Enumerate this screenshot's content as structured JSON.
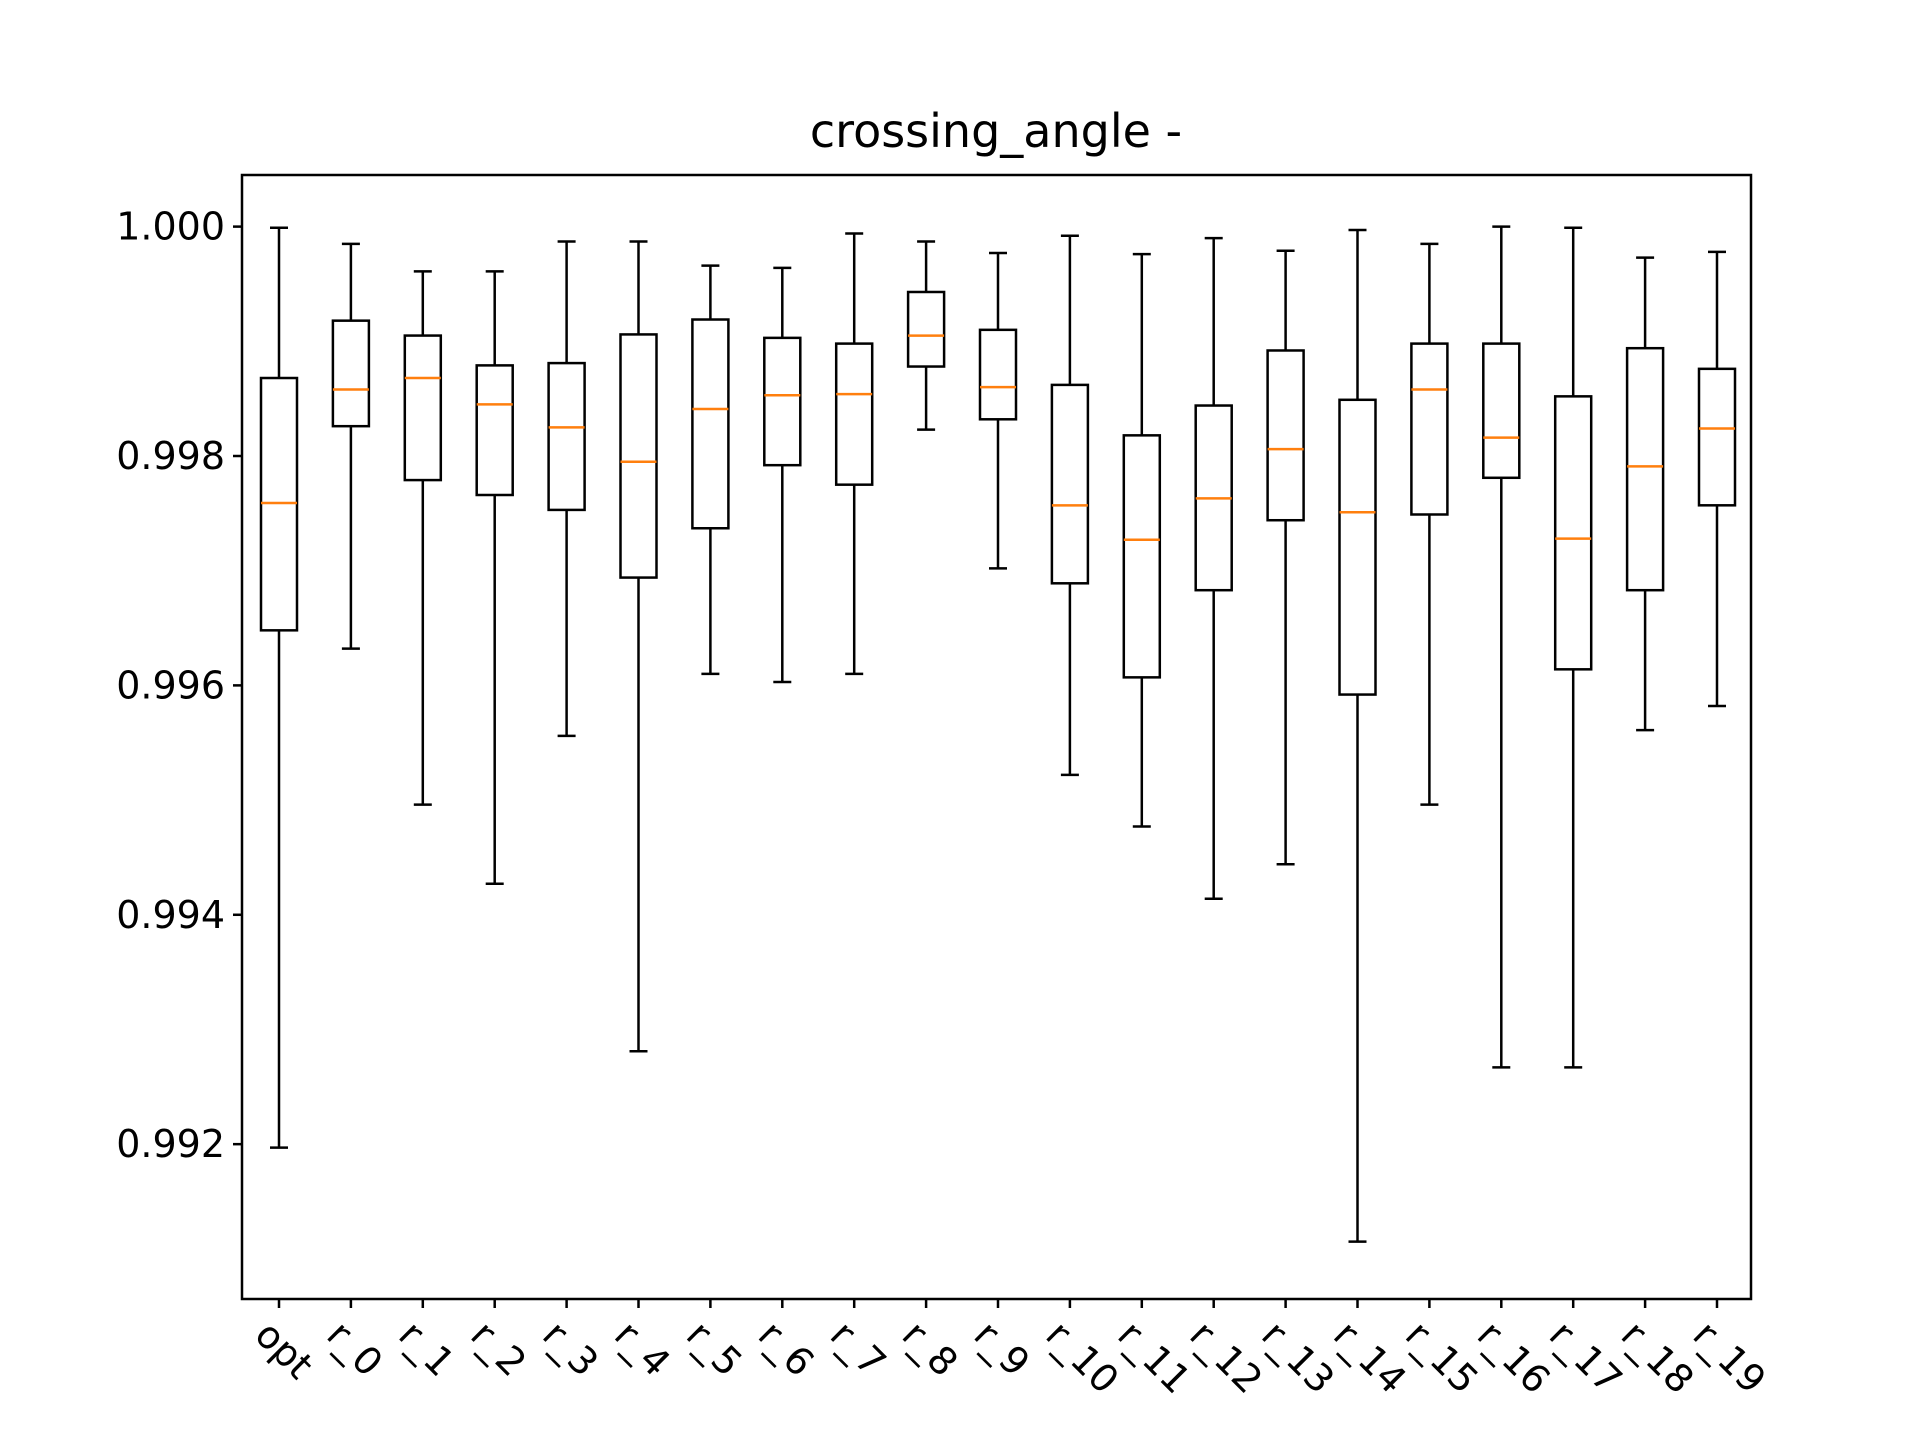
{
  "chart_data": {
    "type": "boxplot",
    "title": "crossing_angle -",
    "xlabel": "",
    "ylabel": "",
    "ylim": [
      0.99065,
      1.00045
    ],
    "yticks": [
      0.992,
      0.994,
      0.996,
      0.998,
      1.0
    ],
    "ytick_labels": [
      "0.992",
      "0.994",
      "0.996",
      "0.998",
      "1.000"
    ],
    "grid": false,
    "colors": {
      "box": "#000000",
      "median": "#ff7f0e",
      "axes": "#000000"
    },
    "categories": [
      "opt",
      "r_0",
      "r_1",
      "r_2",
      "r_3",
      "r_4",
      "r_5",
      "r_6",
      "r_7",
      "r_8",
      "r_9",
      "r_10",
      "r_11",
      "r_12",
      "r_13",
      "r_14",
      "r_15",
      "r_16",
      "r_17",
      "r_18",
      "r_19"
    ],
    "boxes": [
      {
        "whislo": 0.99197,
        "q1": 0.99648,
        "med": 0.99759,
        "q3": 0.99868,
        "whishi": 0.99999
      },
      {
        "whislo": 0.99632,
        "q1": 0.99826,
        "med": 0.99858,
        "q3": 0.99918,
        "whishi": 0.99985
      },
      {
        "whislo": 0.99496,
        "q1": 0.99779,
        "med": 0.99868,
        "q3": 0.99905,
        "whishi": 0.99961
      },
      {
        "whislo": 0.99427,
        "q1": 0.99766,
        "med": 0.99845,
        "q3": 0.99879,
        "whishi": 0.99961
      },
      {
        "whislo": 0.99556,
        "q1": 0.99753,
        "med": 0.99825,
        "q3": 0.99881,
        "whishi": 0.99987
      },
      {
        "whislo": 0.99281,
        "q1": 0.99694,
        "med": 0.99795,
        "q3": 0.99906,
        "whishi": 0.99987
      },
      {
        "whislo": 0.9961,
        "q1": 0.99737,
        "med": 0.99841,
        "q3": 0.99919,
        "whishi": 0.99966
      },
      {
        "whislo": 0.99603,
        "q1": 0.99792,
        "med": 0.99853,
        "q3": 0.99903,
        "whishi": 0.99964
      },
      {
        "whislo": 0.9961,
        "q1": 0.99775,
        "med": 0.99854,
        "q3": 0.99898,
        "whishi": 0.99994
      },
      {
        "whislo": 0.99823,
        "q1": 0.99878,
        "med": 0.99905,
        "q3": 0.99943,
        "whishi": 0.99987
      },
      {
        "whislo": 0.99702,
        "q1": 0.99832,
        "med": 0.9986,
        "q3": 0.9991,
        "whishi": 0.99977
      },
      {
        "whislo": 0.99522,
        "q1": 0.99689,
        "med": 0.99757,
        "q3": 0.99862,
        "whishi": 0.99992
      },
      {
        "whislo": 0.99477,
        "q1": 0.99607,
        "med": 0.99727,
        "q3": 0.99818,
        "whishi": 0.99976
      },
      {
        "whislo": 0.99414,
        "q1": 0.99683,
        "med": 0.99763,
        "q3": 0.99844,
        "whishi": 0.9999
      },
      {
        "whislo": 0.99444,
        "q1": 0.99744,
        "med": 0.99806,
        "q3": 0.99892,
        "whishi": 0.99979
      },
      {
        "whislo": 0.99115,
        "q1": 0.99592,
        "med": 0.99751,
        "q3": 0.99849,
        "whishi": 0.99997
      },
      {
        "whislo": 0.99496,
        "q1": 0.99749,
        "med": 0.99858,
        "q3": 0.99898,
        "whishi": 0.99985
      },
      {
        "whislo": 0.99267,
        "q1": 0.99781,
        "med": 0.99816,
        "q3": 0.99898,
        "whishi": 1.0
      },
      {
        "whislo": 0.99267,
        "q1": 0.99614,
        "med": 0.99728,
        "q3": 0.99852,
        "whishi": 0.99999
      },
      {
        "whislo": 0.99561,
        "q1": 0.99683,
        "med": 0.99791,
        "q3": 0.99894,
        "whishi": 0.99973
      },
      {
        "whislo": 0.99582,
        "q1": 0.99757,
        "med": 0.99824,
        "q3": 0.99876,
        "whishi": 0.99978
      }
    ]
  }
}
